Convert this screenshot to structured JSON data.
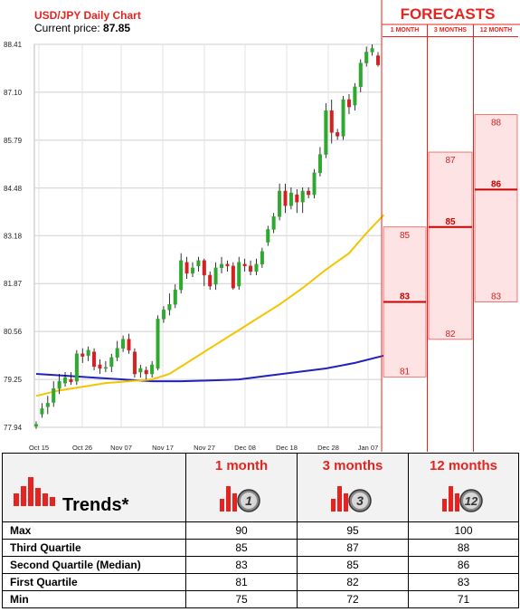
{
  "chart_data": {
    "type": "candlestick",
    "title": "USD/JPY Daily Chart",
    "current_price_label": "Current price:",
    "current_price": "87.85",
    "y_ticks": [
      "88.41",
      "87.10",
      "85.79",
      "84.48",
      "83.18",
      "81.87",
      "80.56",
      "79.25",
      "77.94"
    ],
    "x_ticks": [
      "Oct 15",
      "Oct 26",
      "Nov 07",
      "Nov 17",
      "Nov 27",
      "Dec 08",
      "Dec 18",
      "Dec 28",
      "Jan 07"
    ],
    "ylim": [
      77.94,
      88.41
    ],
    "candles": [
      {
        "o": 77.97,
        "c": 78.02,
        "h": 78.1,
        "l": 77.9
      },
      {
        "o": 78.3,
        "c": 78.45,
        "h": 78.6,
        "l": 78.2
      },
      {
        "o": 78.5,
        "c": 78.6,
        "h": 78.8,
        "l": 78.3
      },
      {
        "o": 78.62,
        "c": 79.0,
        "h": 79.2,
        "l": 78.5
      },
      {
        "o": 79.0,
        "c": 79.2,
        "h": 79.4,
        "l": 78.85
      },
      {
        "o": 79.15,
        "c": 79.3,
        "h": 79.45,
        "l": 79.05
      },
      {
        "o": 79.25,
        "c": 79.18,
        "h": 79.45,
        "l": 79.1
      },
      {
        "o": 79.2,
        "c": 79.95,
        "h": 80.05,
        "l": 79.1
      },
      {
        "o": 79.95,
        "c": 79.88,
        "h": 80.1,
        "l": 79.7
      },
      {
        "o": 79.9,
        "c": 80.05,
        "h": 80.15,
        "l": 79.75
      },
      {
        "o": 80.0,
        "c": 79.6,
        "h": 80.1,
        "l": 79.5
      },
      {
        "o": 79.65,
        "c": 79.55,
        "h": 79.8,
        "l": 79.4
      },
      {
        "o": 79.55,
        "c": 79.58,
        "h": 79.75,
        "l": 79.45
      },
      {
        "o": 79.6,
        "c": 79.85,
        "h": 79.95,
        "l": 79.45
      },
      {
        "o": 79.85,
        "c": 80.1,
        "h": 80.3,
        "l": 79.75
      },
      {
        "o": 80.1,
        "c": 80.35,
        "h": 80.45,
        "l": 80.0
      },
      {
        "o": 80.35,
        "c": 80.05,
        "h": 80.5,
        "l": 79.95
      },
      {
        "o": 80.0,
        "c": 79.4,
        "h": 80.1,
        "l": 79.3
      },
      {
        "o": 79.45,
        "c": 79.55,
        "h": 79.65,
        "l": 79.3
      },
      {
        "o": 79.5,
        "c": 79.4,
        "h": 79.6,
        "l": 79.25
      },
      {
        "o": 79.4,
        "c": 79.65,
        "h": 79.75,
        "l": 79.3
      },
      {
        "o": 79.55,
        "c": 80.9,
        "h": 81.0,
        "l": 79.5
      },
      {
        "o": 80.9,
        "c": 81.15,
        "h": 81.25,
        "l": 80.8
      },
      {
        "o": 81.15,
        "c": 81.3,
        "h": 81.6,
        "l": 81.0
      },
      {
        "o": 81.3,
        "c": 81.7,
        "h": 81.85,
        "l": 81.2
      },
      {
        "o": 81.7,
        "c": 82.5,
        "h": 82.7,
        "l": 81.6
      },
      {
        "o": 82.45,
        "c": 82.15,
        "h": 82.6,
        "l": 82.0
      },
      {
        "o": 82.15,
        "c": 82.3,
        "h": 82.45,
        "l": 82.05
      },
      {
        "o": 82.35,
        "c": 82.5,
        "h": 82.6,
        "l": 82.2
      },
      {
        "o": 82.5,
        "c": 82.1,
        "h": 82.55,
        "l": 81.8
      },
      {
        "o": 82.1,
        "c": 81.8,
        "h": 82.2,
        "l": 81.7
      },
      {
        "o": 81.85,
        "c": 82.3,
        "h": 82.45,
        "l": 81.7
      },
      {
        "o": 82.3,
        "c": 82.4,
        "h": 82.6,
        "l": 82.15
      },
      {
        "o": 82.4,
        "c": 82.35,
        "h": 82.5,
        "l": 82.2
      },
      {
        "o": 82.35,
        "c": 81.75,
        "h": 82.45,
        "l": 81.7
      },
      {
        "o": 81.8,
        "c": 82.45,
        "h": 82.6,
        "l": 81.7
      },
      {
        "o": 82.4,
        "c": 82.35,
        "h": 82.55,
        "l": 82.2
      },
      {
        "o": 82.35,
        "c": 82.2,
        "h": 82.5,
        "l": 82.1
      },
      {
        "o": 82.2,
        "c": 82.4,
        "h": 82.55,
        "l": 82.1
      },
      {
        "o": 82.4,
        "c": 82.75,
        "h": 82.85,
        "l": 82.3
      },
      {
        "o": 83.0,
        "c": 83.35,
        "h": 83.45,
        "l": 82.9
      },
      {
        "o": 83.35,
        "c": 83.7,
        "h": 83.8,
        "l": 83.25
      },
      {
        "o": 83.7,
        "c": 84.4,
        "h": 84.6,
        "l": 83.6
      },
      {
        "o": 84.4,
        "c": 84.0,
        "h": 84.6,
        "l": 83.8
      },
      {
        "o": 84.0,
        "c": 84.35,
        "h": 84.5,
        "l": 83.9
      },
      {
        "o": 84.3,
        "c": 84.1,
        "h": 84.45,
        "l": 83.8
      },
      {
        "o": 84.1,
        "c": 84.4,
        "h": 84.5,
        "l": 83.8
      },
      {
        "o": 84.4,
        "c": 84.3,
        "h": 84.5,
        "l": 84.2
      },
      {
        "o": 84.3,
        "c": 84.9,
        "h": 85.0,
        "l": 84.2
      },
      {
        "o": 84.9,
        "c": 85.4,
        "h": 85.6,
        "l": 84.8
      },
      {
        "o": 85.4,
        "c": 86.6,
        "h": 86.8,
        "l": 85.3
      },
      {
        "o": 86.6,
        "c": 86.0,
        "h": 86.9,
        "l": 85.7
      },
      {
        "o": 86.0,
        "c": 85.9,
        "h": 86.1,
        "l": 85.8
      },
      {
        "o": 85.9,
        "c": 86.9,
        "h": 87.0,
        "l": 85.8
      },
      {
        "o": 86.9,
        "c": 86.7,
        "h": 87.05,
        "l": 86.5
      },
      {
        "o": 86.75,
        "c": 87.25,
        "h": 87.35,
        "l": 86.6
      },
      {
        "o": 87.25,
        "c": 87.9,
        "h": 88.0,
        "l": 87.1
      },
      {
        "o": 87.9,
        "c": 88.2,
        "h": 88.35,
        "l": 87.8
      },
      {
        "o": 88.2,
        "c": 88.3,
        "h": 88.41,
        "l": 88.1
      },
      {
        "o": 88.1,
        "c": 87.85,
        "h": 88.2,
        "l": 87.8
      }
    ],
    "ma_yellow": [
      [
        0,
        78.8
      ],
      [
        4,
        78.95
      ],
      [
        8,
        79.05
      ],
      [
        12,
        79.15
      ],
      [
        16,
        79.2
      ],
      [
        20,
        79.25
      ],
      [
        23,
        79.4
      ],
      [
        26,
        79.7
      ],
      [
        30,
        80.1
      ],
      [
        34,
        80.5
      ],
      [
        38,
        80.9
      ],
      [
        42,
        81.3
      ],
      [
        46,
        81.75
      ],
      [
        50,
        82.25
      ],
      [
        54,
        82.7
      ],
      [
        57,
        83.25
      ],
      [
        60,
        83.75
      ]
    ],
    "ma_blue": [
      [
        0,
        79.4
      ],
      [
        5,
        79.35
      ],
      [
        10,
        79.3
      ],
      [
        15,
        79.25
      ],
      [
        20,
        79.2
      ],
      [
        25,
        79.2
      ],
      [
        30,
        79.22
      ],
      [
        35,
        79.25
      ],
      [
        40,
        79.35
      ],
      [
        45,
        79.45
      ],
      [
        50,
        79.55
      ],
      [
        55,
        79.7
      ],
      [
        60,
        79.9
      ]
    ],
    "forecasts": {
      "title": "FORECASTS",
      "columns": [
        {
          "label": "1 MONTH",
          "q3": "85",
          "median": "83",
          "q1": "81",
          "v_q3": 85,
          "v_median": 83,
          "v_q1": 81
        },
        {
          "label": "3 MONTHS",
          "q3": "87",
          "median": "85",
          "q1": "82",
          "v_q3": 87,
          "v_median": 85,
          "v_q1": 82
        },
        {
          "label": "12 MONTH",
          "q3": "88",
          "median": "86",
          "q1": "83",
          "v_q3": 88,
          "v_median": 86,
          "v_q1": 83
        }
      ],
      "scale_top_value": 90.07,
      "scale_bottom_value": 79.0
    }
  },
  "trends_table": {
    "title": "Trends*",
    "columns": [
      {
        "label": "1 month",
        "icon_number": "1"
      },
      {
        "label": "3 months",
        "icon_number": "3"
      },
      {
        "label": "12 months",
        "icon_number": "12"
      }
    ],
    "rows": [
      {
        "label": "Max",
        "values": [
          "90",
          "95",
          "100"
        ]
      },
      {
        "label": "Third Quartile",
        "values": [
          "85",
          "87",
          "88"
        ]
      },
      {
        "label": "Second Quartile (Median)",
        "values": [
          "83",
          "85",
          "86"
        ]
      },
      {
        "label": "First Quartile",
        "values": [
          "81",
          "82",
          "83"
        ]
      },
      {
        "label": "Min",
        "values": [
          "75",
          "72",
          "71"
        ]
      }
    ]
  },
  "colors": {
    "up": "#2ea82e",
    "down": "#d42020",
    "ma_yellow": "#f5c400",
    "ma_blue": "#2222bb",
    "accent": "#e8231f",
    "forecast_fill": "#fde3e3"
  }
}
